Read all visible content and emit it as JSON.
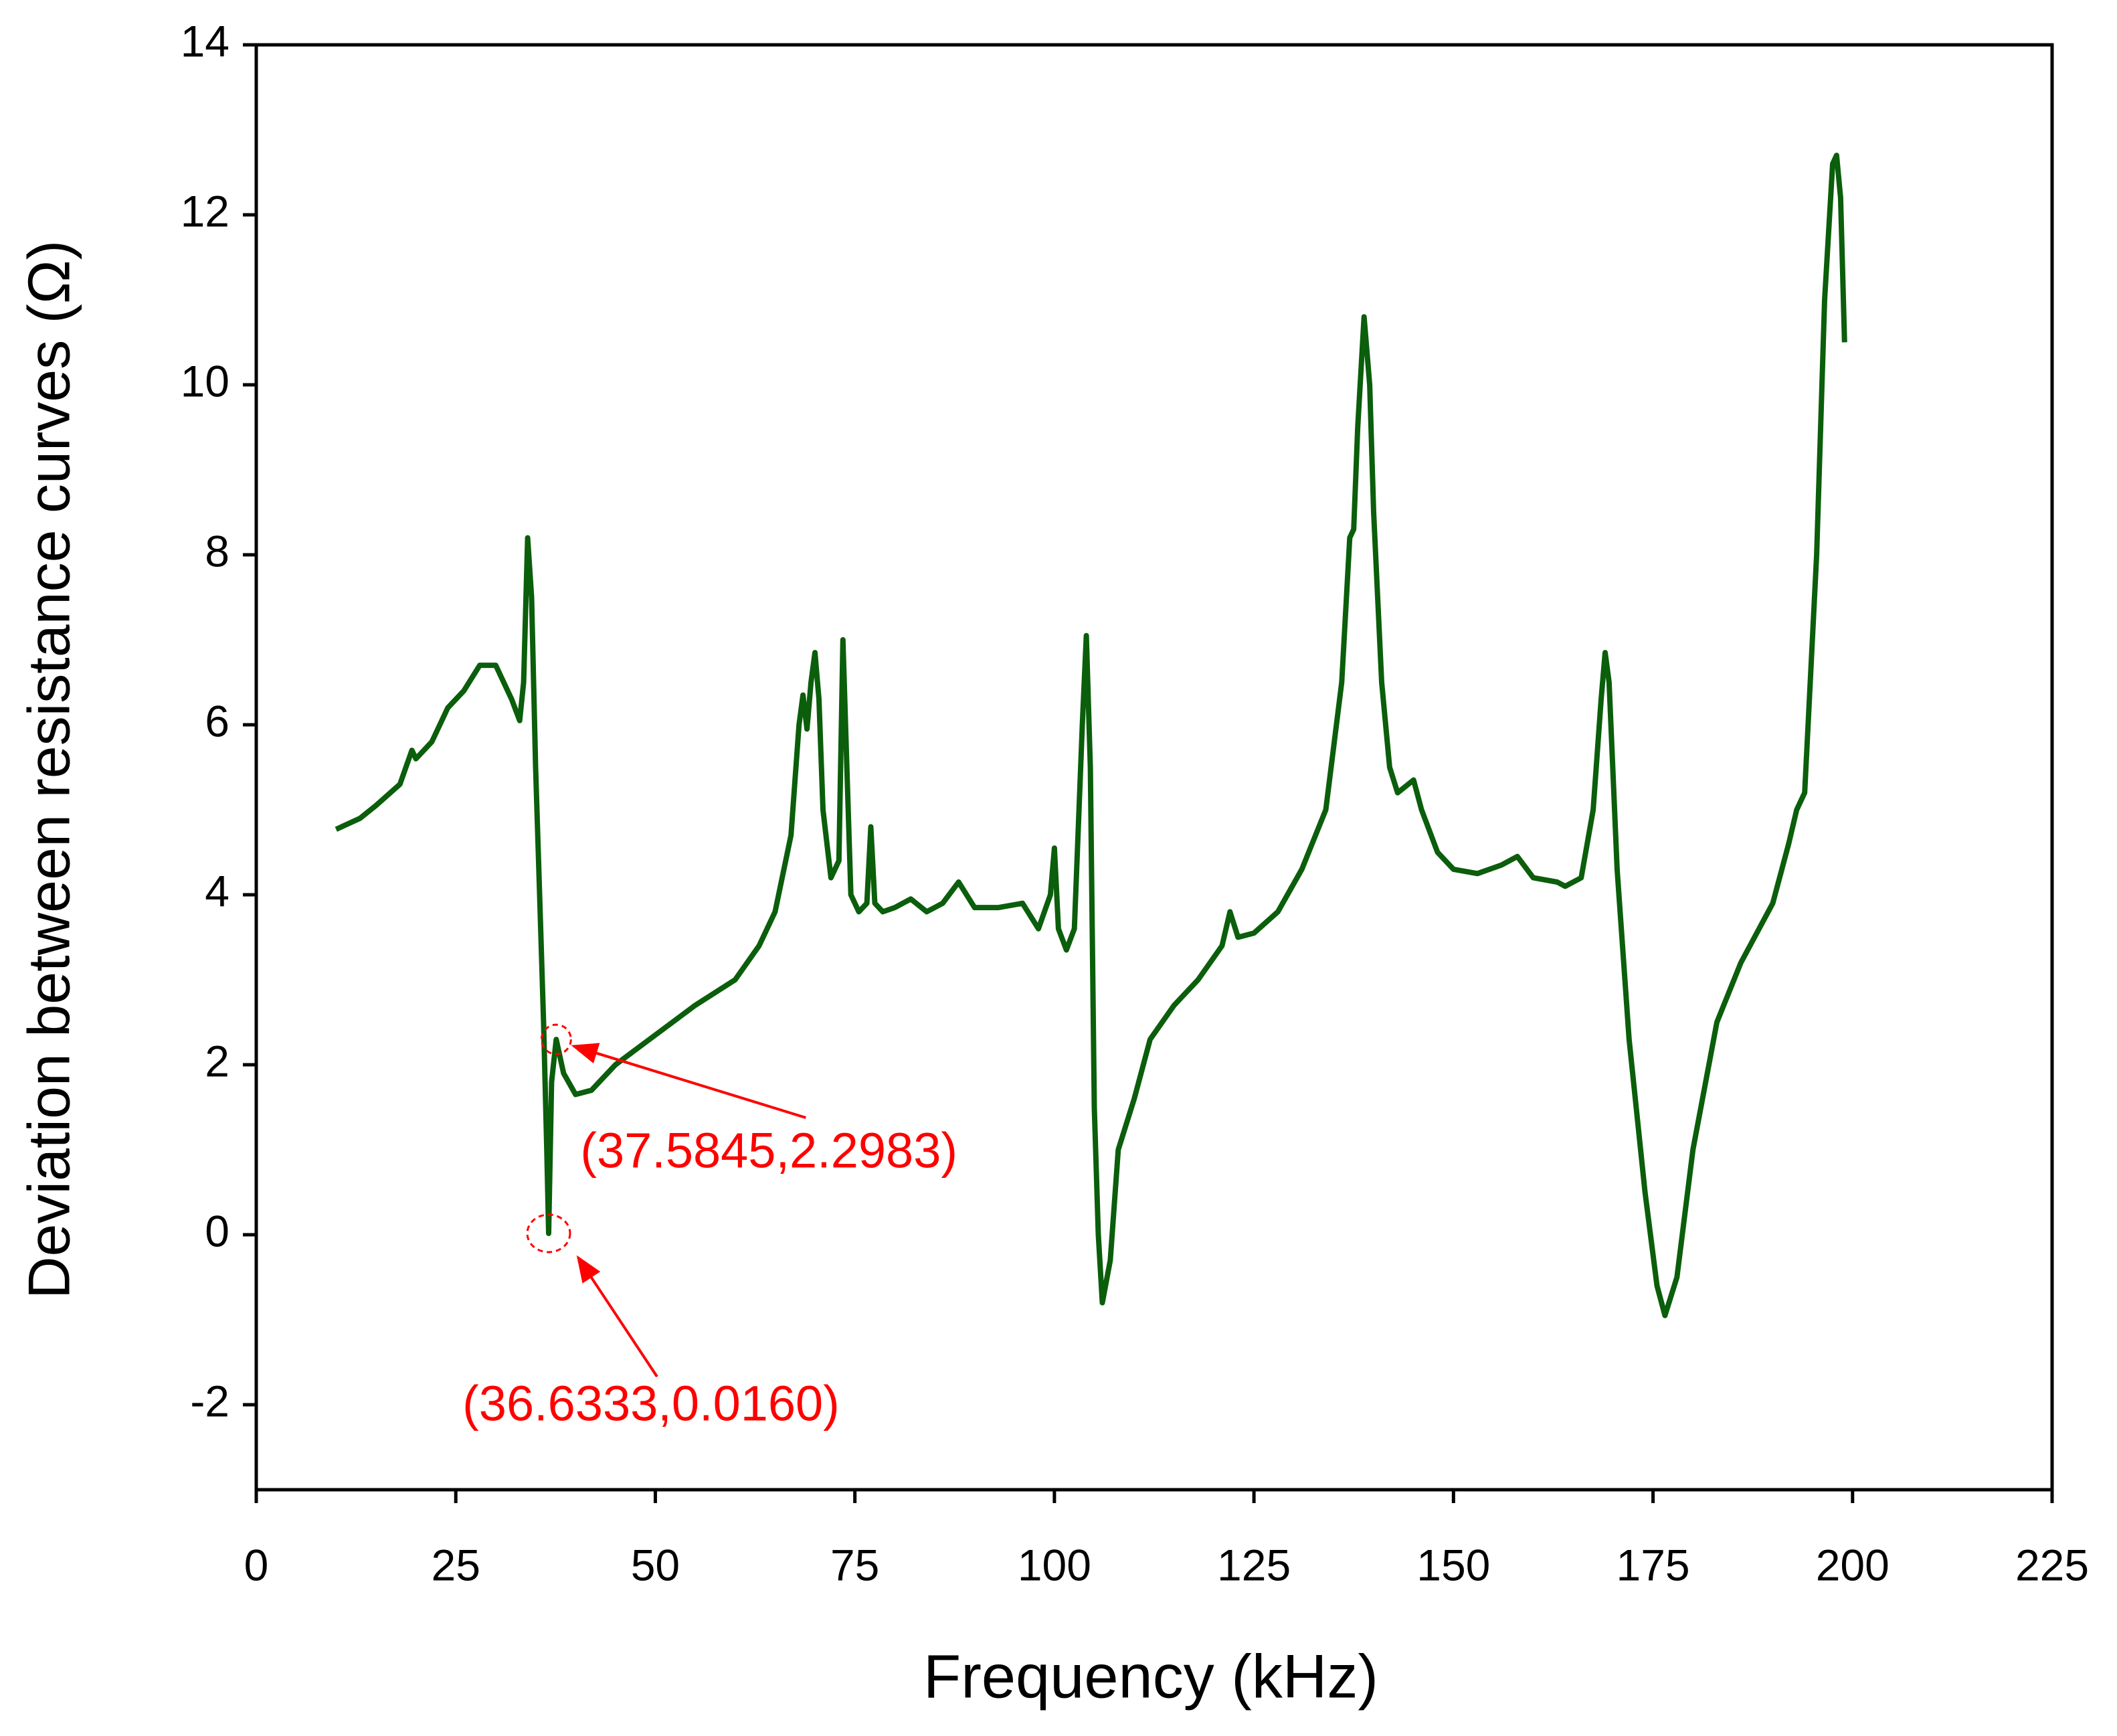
{
  "chart_data": {
    "type": "line",
    "x_label": "Frequency (kHz)",
    "y_label": "Deviation between resistance curves (Ω)",
    "color": "#0b5e0b",
    "xlim": [
      0,
      225
    ],
    "xticks": [
      0,
      25,
      50,
      75,
      100,
      125,
      150,
      175,
      200,
      225
    ],
    "ylim": [
      -3,
      14
    ],
    "yticks": [
      -2,
      0,
      2,
      4,
      6,
      8,
      10,
      12,
      14
    ],
    "x": [
      10,
      13,
      15,
      18,
      19.5,
      20,
      22,
      24,
      26,
      28,
      30,
      32,
      33,
      33.5,
      34,
      34.5,
      35,
      35.5,
      36,
      36.4,
      36.6333,
      37,
      37.5845,
      38.5,
      40,
      42,
      45,
      50,
      55,
      60,
      63,
      65,
      67,
      68,
      68.5,
      69,
      69.5,
      70,
      70.5,
      71,
      72,
      73,
      73.5,
      74,
      74.5,
      75.5,
      76.5,
      77,
      77.5,
      78.5,
      80,
      82,
      84,
      86,
      88,
      90,
      93,
      96,
      98,
      99.5,
      100,
      100.5,
      101.5,
      102.5,
      103.5,
      104,
      104.5,
      105,
      105.5,
      106,
      107,
      108,
      110,
      112,
      115,
      118,
      121,
      122,
      123,
      125,
      128,
      131,
      134,
      136,
      137,
      137.5,
      138,
      138.8,
      139.5,
      140,
      141,
      142,
      143,
      145,
      146,
      148,
      150,
      153,
      156,
      158,
      160,
      163,
      164,
      166,
      167.5,
      168.5,
      169,
      169.5,
      170.5,
      172,
      174,
      175.5,
      176.5,
      178,
      180,
      183,
      186,
      190,
      192,
      193,
      194,
      195.5,
      196.5,
      197.5,
      198,
      198.5,
      199
    ],
    "values": [
      4.77,
      4.9,
      5.05,
      5.3,
      5.7,
      5.6,
      5.8,
      6.2,
      6.4,
      6.7,
      6.7,
      6.3,
      6.05,
      6.5,
      8.2,
      7.5,
      5.5,
      4.0,
      2.5,
      1.0,
      0.016,
      1.8,
      2.2983,
      1.9,
      1.65,
      1.7,
      2.0,
      2.35,
      2.7,
      3.0,
      3.4,
      3.8,
      4.7,
      6.0,
      6.35,
      5.95,
      6.5,
      6.85,
      6.3,
      5.0,
      4.2,
      4.4,
      7.0,
      5.5,
      4.0,
      3.8,
      3.9,
      4.8,
      3.9,
      3.8,
      3.85,
      3.95,
      3.8,
      3.9,
      4.15,
      3.85,
      3.85,
      3.9,
      3.6,
      4.0,
      4.55,
      3.6,
      3.35,
      3.6,
      6.0,
      7.05,
      5.5,
      1.5,
      0.0,
      -0.8,
      -0.3,
      1.0,
      1.6,
      2.3,
      2.7,
      3.0,
      3.4,
      3.8,
      3.5,
      3.55,
      3.8,
      4.3,
      5.0,
      6.5,
      8.2,
      8.3,
      9.5,
      10.8,
      10.0,
      8.5,
      6.5,
      5.5,
      5.2,
      5.35,
      5.0,
      4.5,
      4.3,
      4.25,
      4.35,
      4.45,
      4.2,
      4.15,
      4.1,
      4.2,
      5.0,
      6.3,
      6.85,
      6.5,
      4.3,
      2.3,
      0.5,
      -0.6,
      -0.95,
      -0.5,
      1.0,
      2.5,
      3.2,
      3.9,
      4.6,
      5.0,
      5.2,
      8.0,
      11.0,
      12.6,
      12.7,
      12.2,
      10.5
    ],
    "annotations": [
      {
        "text": "(37.5845,2.2983)",
        "x": 37.5845,
        "y": 2.2983
      },
      {
        "text": "(36.6333,0.0160)",
        "x": 36.6333,
        "y": 0.016
      }
    ],
    "annotation_color": "#ff0000"
  }
}
